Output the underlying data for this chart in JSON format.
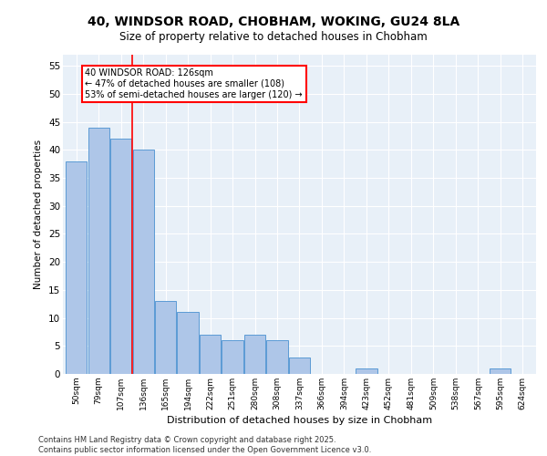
{
  "title_line1": "40, WINDSOR ROAD, CHOBHAM, WOKING, GU24 8LA",
  "title_line2": "Size of property relative to detached houses in Chobham",
  "xlabel": "Distribution of detached houses by size in Chobham",
  "ylabel": "Number of detached properties",
  "categories": [
    "50sqm",
    "79sqm",
    "107sqm",
    "136sqm",
    "165sqm",
    "194sqm",
    "222sqm",
    "251sqm",
    "280sqm",
    "308sqm",
    "337sqm",
    "366sqm",
    "394sqm",
    "423sqm",
    "452sqm",
    "481sqm",
    "509sqm",
    "538sqm",
    "567sqm",
    "595sqm",
    "624sqm"
  ],
  "values": [
    38,
    44,
    42,
    40,
    13,
    11,
    7,
    6,
    7,
    6,
    3,
    0,
    0,
    1,
    0,
    0,
    0,
    0,
    0,
    1,
    0
  ],
  "bar_color": "#aec6e8",
  "bar_edge_color": "#5b9bd5",
  "property_label": "40 WINDSOR ROAD: 126sqm",
  "annotation_line2": "← 47% of detached houses are smaller (108)",
  "annotation_line3": "53% of semi-detached houses are larger (120) →",
  "vline_x_index": 2.5,
  "ylim": [
    0,
    57
  ],
  "yticks": [
    0,
    5,
    10,
    15,
    20,
    25,
    30,
    35,
    40,
    45,
    50,
    55
  ],
  "bg_color": "#e8f0f8",
  "footer_line1": "Contains HM Land Registry data © Crown copyright and database right 2025.",
  "footer_line2": "Contains public sector information licensed under the Open Government Licence v3.0."
}
